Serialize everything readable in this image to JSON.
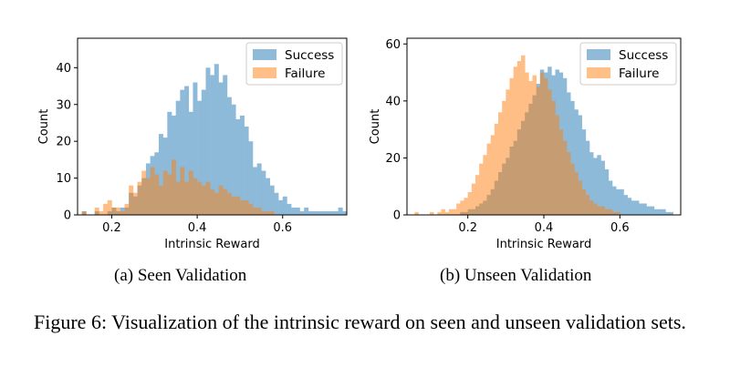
{
  "figure": {
    "subcaptions": [
      "(a) Seen Validation",
      "(b) Unseen Validation"
    ],
    "caption": "Figure 6: Visualization of the intrinsic reward on seen and unseen validation sets."
  },
  "chart_data": [
    {
      "type": "bar",
      "subtitle": "(a) Seen Validation",
      "xlabel": "Intrinsic Reward",
      "ylabel": "Count",
      "xlim": [
        0.12,
        0.75
      ],
      "ylim": [
        0,
        48
      ],
      "xticks": [
        0.2,
        0.4,
        0.6
      ],
      "yticks": [
        0,
        10,
        20,
        30,
        40
      ],
      "legend": "top-right",
      "bin_width": 0.01,
      "x_start": 0.13,
      "series": [
        {
          "name": "Success",
          "color": "#1f77b4",
          "values": [
            1,
            0,
            0,
            1,
            0,
            0,
            1,
            2,
            1,
            2,
            2,
            6,
            5,
            8,
            10,
            14,
            16,
            17,
            22,
            21,
            28,
            27,
            31,
            34,
            35,
            28,
            36,
            31,
            34,
            40,
            38,
            41,
            36,
            38,
            32,
            30,
            26,
            27,
            24,
            20,
            13,
            14,
            12,
            10,
            8,
            6,
            4,
            5,
            3,
            2,
            2,
            1,
            2,
            1,
            1,
            1,
            1,
            1,
            1,
            1,
            2,
            1
          ]
        },
        {
          "name": "Failure",
          "color": "#ff7f0e",
          "values": [
            1,
            0,
            0,
            2,
            1,
            3,
            4,
            2,
            2,
            1,
            3,
            8,
            6,
            9,
            12,
            10,
            13,
            11,
            8,
            12,
            11,
            15,
            9,
            13,
            9,
            12,
            10,
            9,
            8,
            9,
            7,
            6,
            8,
            7,
            6,
            5,
            5,
            4,
            4,
            3,
            2,
            2,
            1,
            1,
            1
          ]
        }
      ]
    },
    {
      "type": "bar",
      "subtitle": "(b) Unseen Validation",
      "xlabel": "Intrinsic Reward",
      "ylabel": "Count",
      "xlim": [
        0.04,
        0.76
      ],
      "ylim": [
        0,
        62
      ],
      "xticks": [
        0.2,
        0.4,
        0.6
      ],
      "yticks": [
        0,
        20,
        40,
        60
      ],
      "legend": "top-right",
      "bin_width": 0.01,
      "x_start": 0.06,
      "series": [
        {
          "name": "Success",
          "color": "#1f77b4",
          "values": [
            0,
            0,
            0,
            0,
            0,
            0,
            0,
            0,
            0,
            0,
            0,
            0,
            1,
            1,
            2,
            2,
            3,
            4,
            5,
            7,
            9,
            12,
            15,
            18,
            20,
            24,
            26,
            30,
            33,
            36,
            39,
            42,
            46,
            51,
            50,
            52,
            49,
            51,
            50,
            48,
            43,
            40,
            37,
            35,
            30,
            26,
            22,
            20,
            21,
            19,
            16,
            12,
            10,
            9,
            9,
            7,
            6,
            5,
            5,
            4,
            4,
            3,
            3,
            2,
            2,
            2,
            1,
            1
          ]
        },
        {
          "name": "Failure",
          "color": "#ff7f0e",
          "values": [
            1,
            0,
            0,
            0,
            1,
            0,
            1,
            2,
            1,
            2,
            2,
            4,
            5,
            6,
            8,
            11,
            14,
            18,
            21,
            25,
            28,
            32,
            36,
            40,
            44,
            48,
            52,
            54,
            56,
            50,
            47,
            49,
            45,
            50,
            48,
            44,
            40,
            35,
            30,
            26,
            22,
            18,
            15,
            12,
            9,
            7,
            5,
            4,
            3,
            3,
            2,
            2,
            1,
            1
          ]
        }
      ]
    }
  ]
}
